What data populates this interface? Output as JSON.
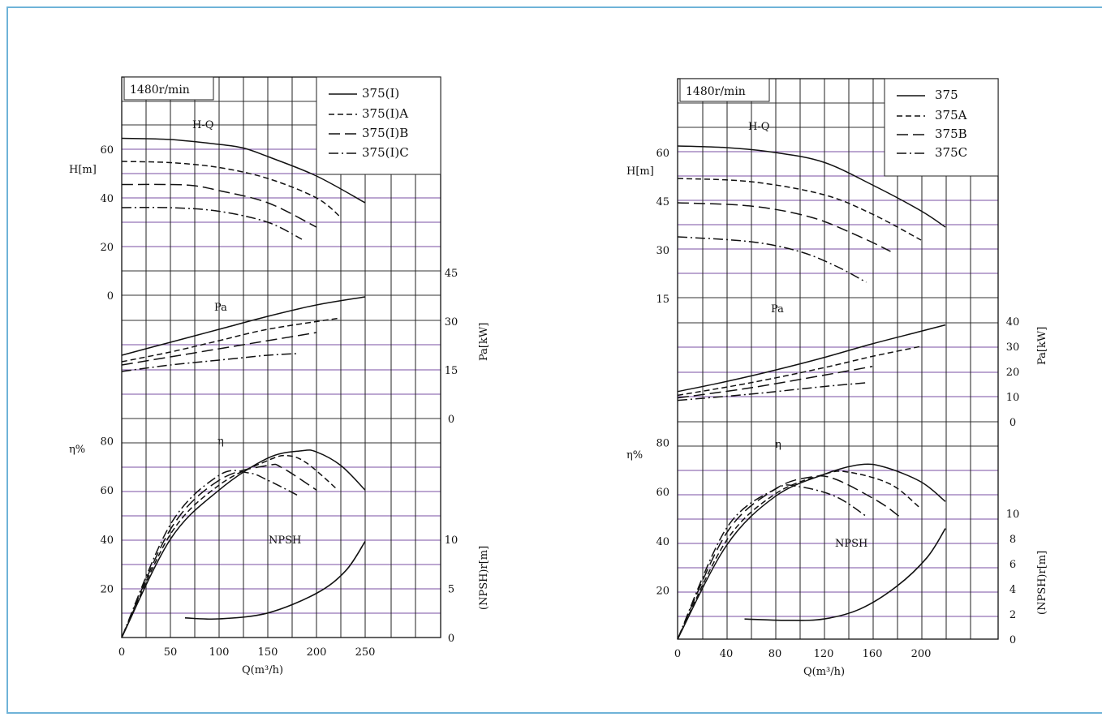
{
  "chart_data": [
    {
      "type": "line",
      "speed_label": "1480r/min",
      "xlabel": "Q(m³/h)",
      "x_ticks": [
        0,
        50,
        100,
        150,
        200,
        250
      ],
      "xlim": [
        0,
        300
      ],
      "head_axis": {
        "label": "H[m]",
        "ticks": [
          0,
          20,
          40,
          60
        ],
        "ylim": [
          0,
          80
        ]
      },
      "power_axis": {
        "label": "Pa[kW]",
        "ticks": [
          0,
          15,
          30,
          45
        ],
        "ylim": [
          0,
          50
        ]
      },
      "efficiency_axis": {
        "label": "η%",
        "ticks": [
          20,
          40,
          60,
          80
        ],
        "ylim": [
          0,
          80
        ]
      },
      "npsh_axis": {
        "label": "(NPSH)r[m]",
        "ticks": [
          0,
          5,
          10
        ],
        "ylim": [
          0,
          12
        ]
      },
      "curve_labels": {
        "head": "H-Q",
        "power": "Pa",
        "efficiency": "η",
        "npsh": "NPSH"
      },
      "legend": [
        "375(I)",
        "375(I)A",
        "375(I)B",
        "375(I)C"
      ],
      "series": [
        {
          "name": "375(I)",
          "style": "solid",
          "H": [
            [
              0,
              64.5
            ],
            [
              50,
              64
            ],
            [
              100,
              62
            ],
            [
              125,
              60.5
            ],
            [
              150,
              57
            ],
            [
              200,
              49
            ],
            [
              250,
              38
            ]
          ],
          "Pa": [
            [
              0,
              19.5
            ],
            [
              50,
              23.5
            ],
            [
              100,
              27.5
            ],
            [
              150,
              31.5
            ],
            [
              200,
              35
            ],
            [
              250,
              37.5
            ]
          ],
          "eta": [
            [
              0,
              0
            ],
            [
              50,
              40
            ],
            [
              100,
              60
            ],
            [
              150,
              73
            ],
            [
              185,
              76
            ],
            [
              200,
              75.5
            ],
            [
              225,
              70
            ],
            [
              250,
              60
            ]
          ]
        },
        {
          "name": "375(I)A",
          "style": "dash",
          "H": [
            [
              0,
              55
            ],
            [
              50,
              54.5
            ],
            [
              100,
              52.5
            ],
            [
              150,
              48
            ],
            [
              200,
              40
            ],
            [
              225,
              32
            ]
          ],
          "Pa": [
            [
              0,
              17.5
            ],
            [
              50,
              20.5
            ],
            [
              100,
              24
            ],
            [
              150,
              27.5
            ],
            [
              225,
              31
            ]
          ],
          "eta": [
            [
              0,
              0
            ],
            [
              50,
              42
            ],
            [
              100,
              62
            ],
            [
              150,
              72
            ],
            [
              170,
              74
            ],
            [
              190,
              71
            ],
            [
              222,
              60
            ]
          ]
        },
        {
          "name": "375(I)B",
          "style": "longdash",
          "H": [
            [
              0,
              45.5
            ],
            [
              50,
              45.5
            ],
            [
              75,
              45
            ],
            [
              100,
              43
            ],
            [
              150,
              38
            ],
            [
              200,
              28
            ]
          ],
          "Pa": [
            [
              0,
              16.5
            ],
            [
              50,
              19
            ],
            [
              100,
              21.5
            ],
            [
              150,
              24
            ],
            [
              200,
              26.5
            ]
          ],
          "eta": [
            [
              0,
              0
            ],
            [
              50,
              44
            ],
            [
              100,
              64
            ],
            [
              150,
              70
            ],
            [
              165,
              69
            ],
            [
              200,
              60
            ]
          ]
        },
        {
          "name": "375(I)C",
          "style": "dashdot",
          "H": [
            [
              0,
              36
            ],
            [
              50,
              36
            ],
            [
              100,
              34.5
            ],
            [
              150,
              30
            ],
            [
              185,
              23
            ]
          ],
          "Pa": [
            [
              0,
              14.5
            ],
            [
              50,
              16.5
            ],
            [
              100,
              18
            ],
            [
              150,
              19.5
            ],
            [
              180,
              20
            ]
          ],
          "eta": [
            [
              0,
              0
            ],
            [
              50,
              46
            ],
            [
              100,
              66
            ],
            [
              130,
              67
            ],
            [
              150,
              64
            ],
            [
              180,
              58
            ]
          ]
        }
      ],
      "npsh": [
        [
          65,
          2
        ],
        [
          100,
          1.9
        ],
        [
          150,
          2.5
        ],
        [
          200,
          4.5
        ],
        [
          230,
          6.8
        ],
        [
          250,
          9.8
        ]
      ]
    },
    {
      "type": "line",
      "speed_label": "1480r/min",
      "xlabel": "Q(m³/h)",
      "x_ticks": [
        0,
        40,
        80,
        120,
        160,
        200
      ],
      "xlim": [
        0,
        240
      ],
      "head_axis": {
        "label": "H[m]",
        "ticks": [
          15,
          30,
          45,
          60
        ],
        "ylim": [
          0,
          75
        ]
      },
      "power_axis": {
        "label": "Pa[kW]",
        "ticks": [
          0,
          10,
          20,
          30,
          40
        ],
        "ylim": [
          0,
          50
        ]
      },
      "efficiency_axis": {
        "label": "η%",
        "ticks": [
          20,
          40,
          60,
          80
        ],
        "ylim": [
          0,
          80
        ]
      },
      "npsh_axis": {
        "label": "(NPSH)r[m]",
        "ticks": [
          0,
          2,
          4,
          6,
          8,
          10
        ],
        "ylim": [
          0,
          12
        ]
      },
      "curve_labels": {
        "head": "H-Q",
        "power": "Pa",
        "efficiency": "η",
        "npsh": "NPSH"
      },
      "legend": [
        "375",
        "375A",
        "375B",
        "375C"
      ],
      "series": [
        {
          "name": "375",
          "style": "solid",
          "H": [
            [
              0,
              62
            ],
            [
              40,
              61.5
            ],
            [
              80,
              60
            ],
            [
              120,
              57
            ],
            [
              160,
              50
            ],
            [
              200,
              42
            ],
            [
              220,
              37
            ]
          ],
          "Pa": [
            [
              0,
              12
            ],
            [
              40,
              16
            ],
            [
              80,
              20.5
            ],
            [
              120,
              25.5
            ],
            [
              160,
              31
            ],
            [
              200,
              36
            ],
            [
              220,
              38.5
            ]
          ],
          "eta": [
            [
              0,
              0
            ],
            [
              40,
              38
            ],
            [
              80,
              58
            ],
            [
              120,
              67
            ],
            [
              150,
              71
            ],
            [
              170,
              70
            ],
            [
              200,
              64
            ],
            [
              220,
              56
            ]
          ]
        },
        {
          "name": "375A",
          "style": "dash",
          "H": [
            [
              0,
              52
            ],
            [
              60,
              51
            ],
            [
              120,
              47
            ],
            [
              160,
              41
            ],
            [
              200,
              33
            ]
          ],
          "Pa": [
            [
              0,
              10.5
            ],
            [
              60,
              15.5
            ],
            [
              120,
              21.5
            ],
            [
              160,
              26
            ],
            [
              200,
              30
            ]
          ],
          "eta": [
            [
              0,
              0
            ],
            [
              40,
              40
            ],
            [
              80,
              59
            ],
            [
              120,
              67
            ],
            [
              140,
              68
            ],
            [
              175,
              63
            ],
            [
              200,
              53
            ]
          ]
        },
        {
          "name": "375B",
          "style": "longdash",
          "H": [
            [
              0,
              44.5
            ],
            [
              60,
              43.5
            ],
            [
              110,
              40
            ],
            [
              150,
              34
            ],
            [
              175,
              29.5
            ]
          ],
          "Pa": [
            [
              0,
              9.5
            ],
            [
              60,
              13.5
            ],
            [
              120,
              18.5
            ],
            [
              160,
              22
            ]
          ],
          "eta": [
            [
              0,
              0
            ],
            [
              40,
              43
            ],
            [
              80,
              61
            ],
            [
              110,
              66
            ],
            [
              130,
              65
            ],
            [
              165,
              56
            ],
            [
              182,
              50
            ]
          ]
        },
        {
          "name": "375C",
          "style": "dashdot",
          "H": [
            [
              0,
              34
            ],
            [
              60,
              32.5
            ],
            [
              100,
              29.5
            ],
            [
              130,
              25
            ],
            [
              155,
              20
            ]
          ],
          "Pa": [
            [
              0,
              8.5
            ],
            [
              60,
              11
            ],
            [
              120,
              14
            ],
            [
              155,
              15.5
            ]
          ],
          "eta": [
            [
              0,
              0
            ],
            [
              40,
              45
            ],
            [
              80,
              61
            ],
            [
              100,
              62
            ],
            [
              130,
              58
            ],
            [
              155,
              50
            ]
          ]
        }
      ],
      "npsh": [
        [
          55,
          1.6
        ],
        [
          90,
          1.5
        ],
        [
          120,
          1.6
        ],
        [
          150,
          2.4
        ],
        [
          180,
          4.2
        ],
        [
          205,
          6.5
        ],
        [
          220,
          8.8
        ]
      ]
    }
  ]
}
